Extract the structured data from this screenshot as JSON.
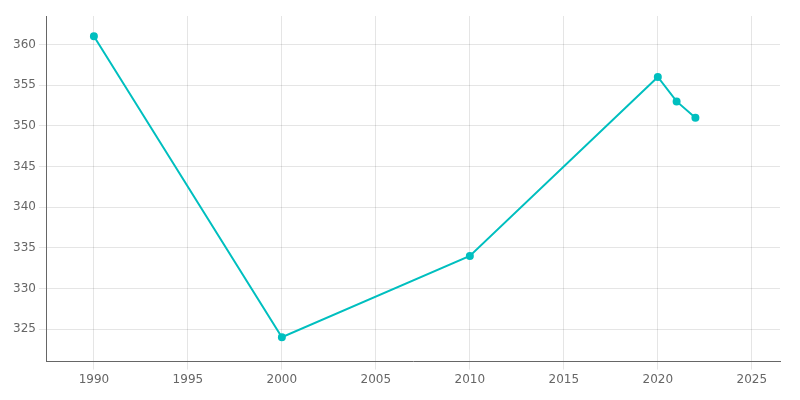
{
  "chart_data": {
    "type": "line",
    "x": [
      1990,
      2000,
      2010,
      2020,
      2021,
      2022
    ],
    "values": [
      361,
      324,
      334,
      356,
      353,
      351
    ],
    "color": "#00BFBF",
    "marker": "circle",
    "xlim": [
      1987.5,
      2026.5
    ],
    "ylim": [
      321,
      363.5
    ],
    "xticks": [
      1990,
      1995,
      2000,
      2005,
      2010,
      2015,
      2020,
      2025
    ],
    "yticks": [
      325,
      330,
      335,
      340,
      345,
      350,
      355,
      360
    ],
    "grid": true
  }
}
